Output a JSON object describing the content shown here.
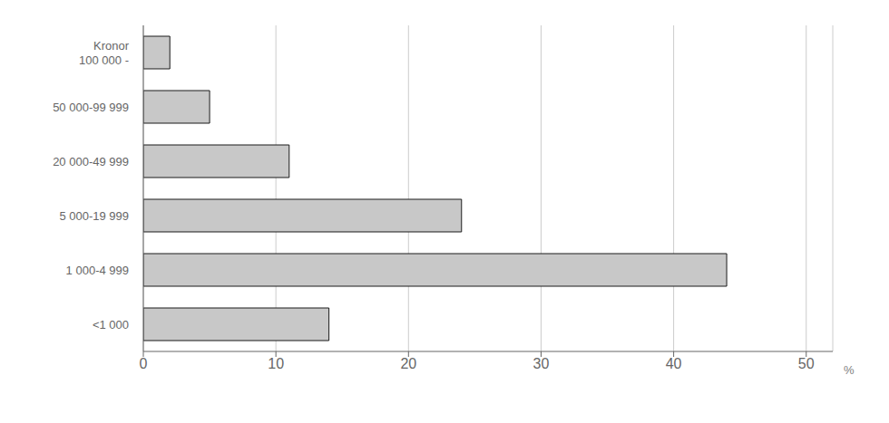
{
  "chart_data": {
    "type": "bar",
    "orientation": "horizontal",
    "categories": [
      "Kronor\n100 000 -",
      "50 000-99 999",
      "20 000-49 999",
      "5 000-19 999",
      "1 000-4 999",
      "<1 000"
    ],
    "values": [
      2,
      5,
      11,
      24,
      44,
      14
    ],
    "color": "#c8c8c8",
    "xlim": [
      0,
      52
    ],
    "xticks": [
      0,
      10,
      20,
      30,
      40,
      50
    ],
    "xlabel": "%",
    "grid": true
  }
}
